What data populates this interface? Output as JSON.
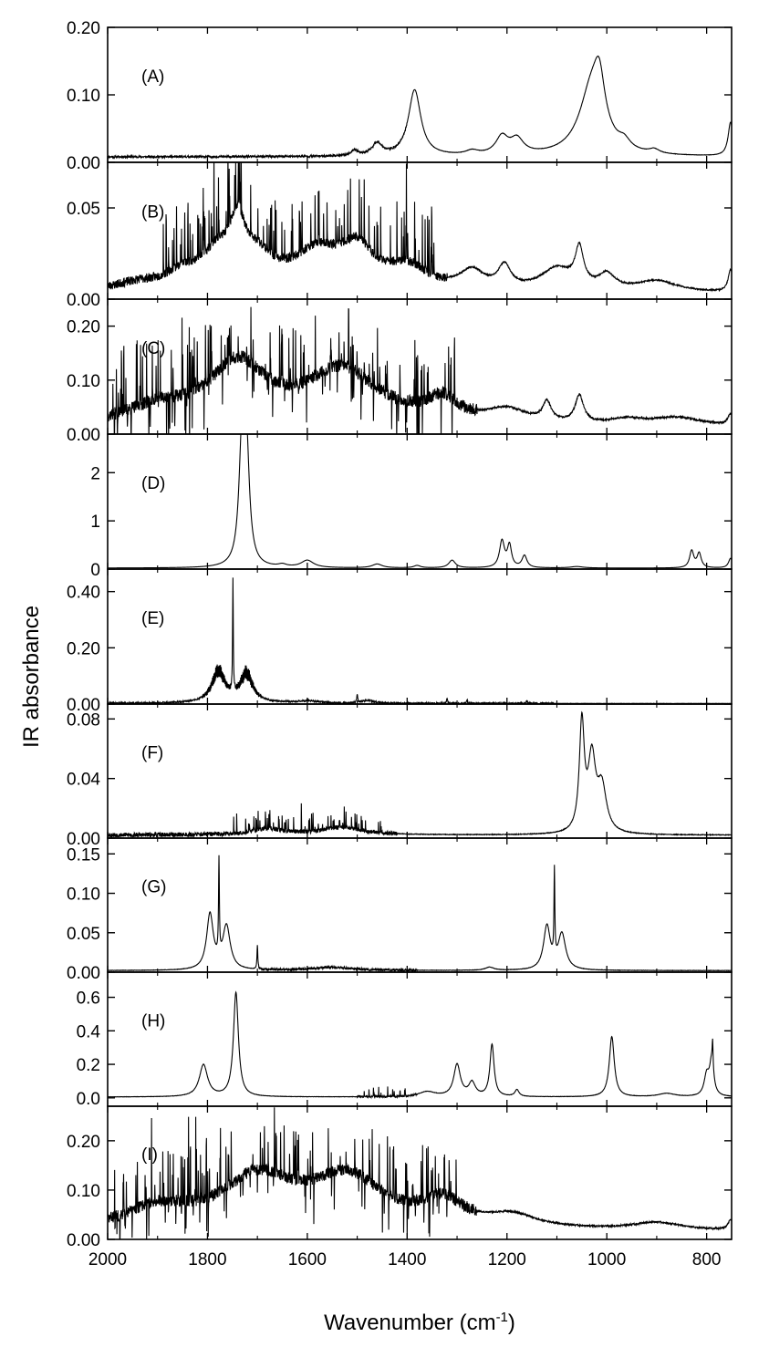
{
  "chart_data": {
    "type": "line",
    "xlabel": "Wavenumber (cm",
    "xlabel_sup": "-1",
    "xlabel_close": ")",
    "ylabel": "IR absorbance",
    "xlim": [
      2000,
      750
    ],
    "x_reversed": true,
    "x_ticks": [
      2000,
      1800,
      1600,
      1400,
      1200,
      1000,
      800
    ],
    "x_tick_labels": [
      "2000",
      "1800",
      "1600",
      "1400",
      "1200",
      "1000",
      "800"
    ],
    "panels": [
      {
        "label": "(A)",
        "ylim": [
          0,
          0.2
        ],
        "y_ticks": [
          0,
          0.1,
          0.2
        ],
        "y_tick_labels": [
          "0.00",
          "0.10",
          "0.20"
        ],
        "baseline": 0.008,
        "noise": {
          "amp": 0.0015,
          "from": 2000,
          "to": 1400,
          "seed": 11,
          "step": 2
        },
        "peaks": [
          {
            "x": 1505,
            "h": 0.008,
            "w": 8
          },
          {
            "x": 1460,
            "h": 0.018,
            "w": 12
          },
          {
            "x": 1385,
            "h": 0.098,
            "w": 15
          },
          {
            "x": 1270,
            "h": 0.006,
            "w": 15
          },
          {
            "x": 1210,
            "h": 0.026,
            "w": 15
          },
          {
            "x": 1180,
            "h": 0.022,
            "w": 16
          },
          {
            "x": 1030,
            "h": 0.1,
            "w": 30
          },
          {
            "x": 1015,
            "h": 0.065,
            "w": 13
          },
          {
            "x": 965,
            "h": 0.012,
            "w": 14
          },
          {
            "x": 905,
            "h": 0.006,
            "w": 12
          },
          {
            "x": 752,
            "h": 0.05,
            "w": 6
          }
        ]
      },
      {
        "label": "(B)",
        "ylim": [
          0,
          0.075
        ],
        "y_ticks": [
          0,
          0.05
        ],
        "y_tick_labels": [
          "0.00",
          "0.05"
        ],
        "baseline": 0.003,
        "peaks": [
          {
            "x": 1940,
            "h": 0.004,
            "w": 60
          },
          {
            "x": 1850,
            "h": 0.008,
            "w": 40
          },
          {
            "x": 1780,
            "h": 0.018,
            "w": 40
          },
          {
            "x": 1740,
            "h": 0.028,
            "w": 18
          },
          {
            "x": 1700,
            "h": 0.015,
            "w": 40
          },
          {
            "x": 1580,
            "h": 0.02,
            "w": 60
          },
          {
            "x": 1500,
            "h": 0.02,
            "w": 40
          },
          {
            "x": 1400,
            "h": 0.012,
            "w": 50
          },
          {
            "x": 1270,
            "h": 0.01,
            "w": 30
          },
          {
            "x": 1205,
            "h": 0.012,
            "w": 15
          },
          {
            "x": 1100,
            "h": 0.012,
            "w": 40
          },
          {
            "x": 1055,
            "h": 0.02,
            "w": 10
          },
          {
            "x": 1000,
            "h": 0.008,
            "w": 20
          },
          {
            "x": 900,
            "h": 0.006,
            "w": 50
          },
          {
            "x": 752,
            "h": 0.012,
            "w": 6
          }
        ],
        "noise": {
          "amp": 0.0025,
          "from": 2000,
          "to": 1320,
          "seed": 23,
          "step": 2
        },
        "spikes": {
          "count": 110,
          "from": 1890,
          "to": 1340,
          "amp": 0.035,
          "seed": 5
        }
      },
      {
        "label": "(C)",
        "ylim": [
          0,
          0.25
        ],
        "y_ticks": [
          0,
          0.1,
          0.2
        ],
        "y_tick_labels": [
          "0.00",
          "0.10",
          "0.20"
        ],
        "baseline": 0.012,
        "peaks": [
          {
            "x": 1900,
            "h": 0.03,
            "w": 80
          },
          {
            "x": 1740,
            "h": 0.11,
            "w": 70
          },
          {
            "x": 1530,
            "h": 0.1,
            "w": 90
          },
          {
            "x": 1330,
            "h": 0.04,
            "w": 40
          },
          {
            "x": 1200,
            "h": 0.025,
            "w": 50
          },
          {
            "x": 1120,
            "h": 0.035,
            "w": 10
          },
          {
            "x": 1055,
            "h": 0.05,
            "w": 10
          },
          {
            "x": 960,
            "h": 0.01,
            "w": 40
          },
          {
            "x": 860,
            "h": 0.015,
            "w": 60
          },
          {
            "x": 752,
            "h": 0.02,
            "w": 6
          }
        ],
        "noise": {
          "amp": 0.012,
          "from": 2000,
          "to": 1260,
          "seed": 37,
          "step": 1.5
        },
        "spikes": {
          "count": 170,
          "from": 1990,
          "to": 1300,
          "amp": 0.11,
          "seed": 9,
          "bipolar": true
        }
      },
      {
        "label": "(D)",
        "ylim": [
          0,
          2.8
        ],
        "y_ticks": [
          0,
          1,
          2
        ],
        "y_tick_labels": [
          "0",
          "1",
          "2"
        ],
        "baseline": 0.02,
        "peaks": [
          {
            "x": 1731,
            "h": 2.35,
            "w": 7
          },
          {
            "x": 1722,
            "h": 2.3,
            "w": 7
          },
          {
            "x": 1650,
            "h": 0.05,
            "w": 10
          },
          {
            "x": 1600,
            "h": 0.15,
            "w": 15
          },
          {
            "x": 1460,
            "h": 0.08,
            "w": 12
          },
          {
            "x": 1380,
            "h": 0.05,
            "w": 8
          },
          {
            "x": 1310,
            "h": 0.16,
            "w": 8
          },
          {
            "x": 1210,
            "h": 0.55,
            "w": 6
          },
          {
            "x": 1195,
            "h": 0.45,
            "w": 5
          },
          {
            "x": 1165,
            "h": 0.25,
            "w": 6
          },
          {
            "x": 1060,
            "h": 0.03,
            "w": 15
          },
          {
            "x": 830,
            "h": 0.35,
            "w": 5
          },
          {
            "x": 815,
            "h": 0.3,
            "w": 5
          },
          {
            "x": 752,
            "h": 0.2,
            "w": 5
          }
        ]
      },
      {
        "label": "(E)",
        "ylim": [
          0,
          0.48
        ],
        "y_ticks": [
          0,
          0.2,
          0.4
        ],
        "y_tick_labels": [
          "0.00",
          "0.20",
          "0.40"
        ],
        "baseline": 0.002,
        "peaks": [
          {
            "x": 1778,
            "h": 0.11,
            "w": 16
          },
          {
            "x": 1722,
            "h": 0.1,
            "w": 15
          },
          {
            "x": 1600,
            "h": 0.008,
            "w": 25
          },
          {
            "x": 1480,
            "h": 0.01,
            "w": 15
          }
        ],
        "rot_bands": [
          {
            "center": 1778,
            "width": 16,
            "amp": 0.025,
            "from": 1810,
            "to": 1748,
            "step": 1.6
          },
          {
            "center": 1722,
            "width": 15,
            "amp": 0.025,
            "from": 1745,
            "to": 1690,
            "step": 1.6
          }
        ],
        "sharp": [
          {
            "x": 1749,
            "h": 0.4,
            "w": 0.8
          },
          {
            "x": 1500,
            "h": 0.03,
            "w": 1
          },
          {
            "x": 1320,
            "h": 0.02,
            "w": 1
          },
          {
            "x": 1280,
            "h": 0.015,
            "w": 1
          },
          {
            "x": 1160,
            "h": 0.012,
            "w": 1
          }
        ],
        "noise": {
          "amp": 0.003,
          "from": 2000,
          "to": 1100,
          "seed": 41,
          "step": 3
        }
      },
      {
        "label": "(F)",
        "ylim": [
          0,
          0.09
        ],
        "y_ticks": [
          0,
          0.04,
          0.08
        ],
        "y_tick_labels": [
          "0.00",
          "0.04",
          "0.08"
        ],
        "baseline": 0.002,
        "peaks": [
          {
            "x": 1050,
            "h": 0.072,
            "w": 6
          },
          {
            "x": 1030,
            "h": 0.048,
            "w": 9
          },
          {
            "x": 1010,
            "h": 0.03,
            "w": 11
          },
          {
            "x": 1680,
            "h": 0.004,
            "w": 40
          },
          {
            "x": 1530,
            "h": 0.005,
            "w": 50
          }
        ],
        "noise": {
          "amp": 0.0015,
          "from": 2000,
          "to": 1420,
          "seed": 53,
          "step": 2.5
        },
        "spikes": {
          "count": 60,
          "from": 1750,
          "to": 1450,
          "amp": 0.012,
          "seed": 17
        }
      },
      {
        "label": "(G)",
        "ylim": [
          0,
          0.17
        ],
        "y_ticks": [
          0,
          0.05,
          0.1,
          0.15
        ],
        "y_tick_labels": [
          "0.00",
          "0.05",
          "0.10",
          "0.15"
        ],
        "baseline": 0.002,
        "peaks": [
          {
            "x": 1795,
            "h": 0.07,
            "w": 8
          },
          {
            "x": 1762,
            "h": 0.055,
            "w": 9
          },
          {
            "x": 1120,
            "h": 0.055,
            "w": 8
          },
          {
            "x": 1090,
            "h": 0.045,
            "w": 9
          },
          {
            "x": 1235,
            "h": 0.004,
            "w": 10
          },
          {
            "x": 1550,
            "h": 0.004,
            "w": 50
          }
        ],
        "sharp": [
          {
            "x": 1777,
            "h": 0.12,
            "w": 1
          },
          {
            "x": 1105,
            "h": 0.11,
            "w": 1
          },
          {
            "x": 1700,
            "h": 0.03,
            "w": 1
          }
        ],
        "noise": {
          "amp": 0.0015,
          "from": 1700,
          "to": 1380,
          "seed": 61,
          "step": 3
        }
      },
      {
        "label": "(H)",
        "ylim": [
          -0.05,
          0.75
        ],
        "y_ticks": [
          0,
          0.2,
          0.4,
          0.6
        ],
        "y_tick_labels": [
          "0.0",
          "0.2",
          "0.4",
          "0.6"
        ],
        "baseline": 0.005,
        "peaks": [
          {
            "x": 1808,
            "h": 0.19,
            "w": 10
          },
          {
            "x": 1743,
            "h": 0.62,
            "w": 6
          },
          {
            "x": 1360,
            "h": 0.03,
            "w": 20
          },
          {
            "x": 1300,
            "h": 0.19,
            "w": 8
          },
          {
            "x": 1270,
            "h": 0.08,
            "w": 8
          },
          {
            "x": 1230,
            "h": 0.31,
            "w": 5
          },
          {
            "x": 1180,
            "h": 0.04,
            "w": 5
          },
          {
            "x": 990,
            "h": 0.36,
            "w": 6
          },
          {
            "x": 800,
            "h": 0.12,
            "w": 6
          },
          {
            "x": 790,
            "h": 0.2,
            "w": 5
          },
          {
            "x": 880,
            "h": 0.02,
            "w": 20
          }
        ],
        "sharp": [
          {
            "x": 788,
            "h": 0.15,
            "w": 1
          }
        ],
        "noise": {
          "amp": 0.006,
          "from": 1500,
          "to": 1380,
          "seed": 71,
          "step": 2
        },
        "spikes": {
          "count": 14,
          "from": 1490,
          "to": 1400,
          "amp": 0.06,
          "seed": 29
        }
      },
      {
        "label": "(I)",
        "ylim": [
          0,
          0.27
        ],
        "y_ticks": [
          0,
          0.1,
          0.2
        ],
        "y_tick_labels": [
          "0.00",
          "0.10",
          "0.20"
        ],
        "baseline": 0.015,
        "peaks": [
          {
            "x": 1900,
            "h": 0.04,
            "w": 80
          },
          {
            "x": 1700,
            "h": 0.1,
            "w": 90
          },
          {
            "x": 1520,
            "h": 0.1,
            "w": 90
          },
          {
            "x": 1330,
            "h": 0.05,
            "w": 50
          },
          {
            "x": 1190,
            "h": 0.025,
            "w": 60
          },
          {
            "x": 900,
            "h": 0.015,
            "w": 60
          },
          {
            "x": 752,
            "h": 0.02,
            "w": 6
          }
        ],
        "noise": {
          "amp": 0.012,
          "from": 2000,
          "to": 1260,
          "seed": 83,
          "step": 1.5
        },
        "spikes": {
          "count": 170,
          "from": 1990,
          "to": 1300,
          "amp": 0.11,
          "seed": 13,
          "bipolar": true
        }
      }
    ]
  }
}
